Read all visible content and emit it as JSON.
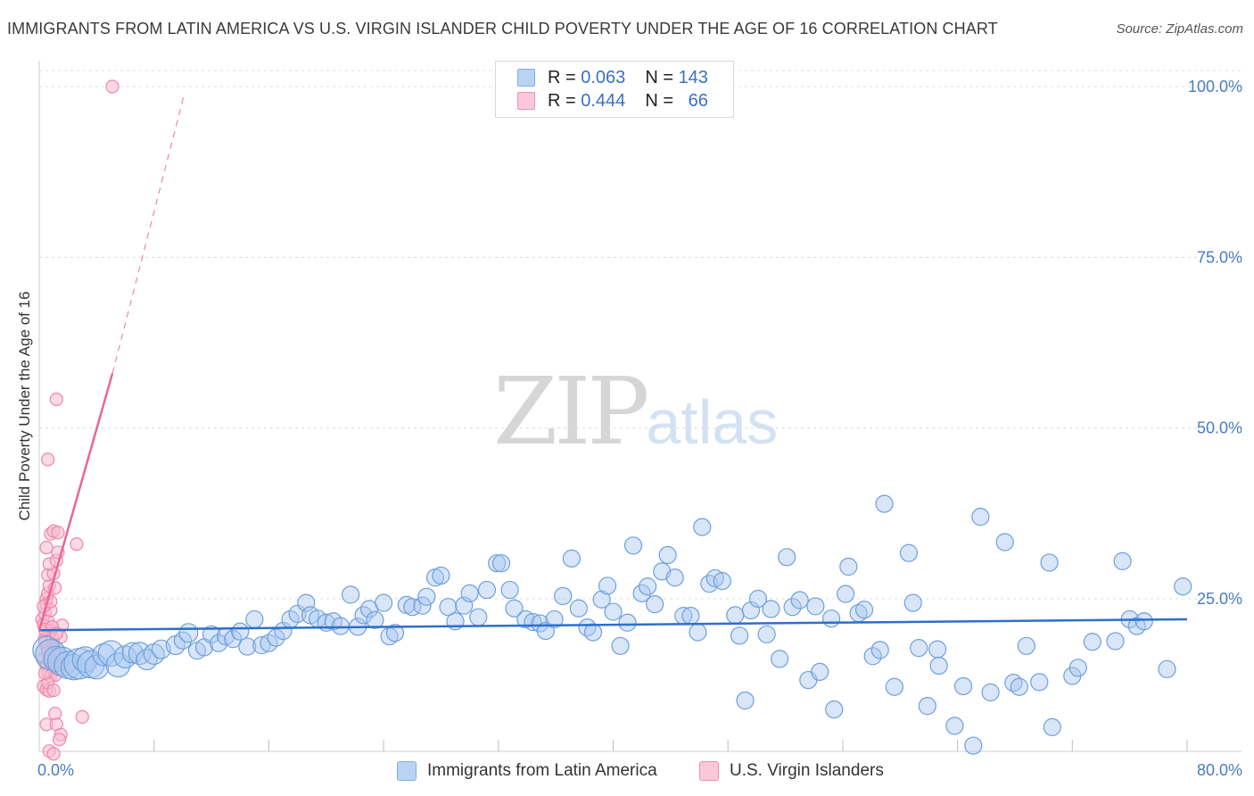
{
  "header": {
    "title": "IMMIGRANTS FROM LATIN AMERICA VS U.S. VIRGIN ISLANDER CHILD POVERTY UNDER THE AGE OF 16 CORRELATION CHART",
    "source": "Source: ZipAtlas.com"
  },
  "watermark": {
    "zip": "ZIP",
    "atlas": "atlas"
  },
  "legend": {
    "rows": [
      {
        "r_label": "R =",
        "r_value": "0.063",
        "n_label": "N =",
        "n_value": "143",
        "color": "#7eaee8"
      },
      {
        "r_label": "R =",
        "r_value": "0.444",
        "n_label": "N =",
        "n_value": "66",
        "color": "#f08fb0"
      }
    ]
  },
  "bottom_legend": {
    "series1": "Immigrants from Latin America",
    "series2": "U.S. Virgin Islanders"
  },
  "colors": {
    "blue_fill": "#a9c8ef",
    "blue_stroke": "#6f9fdc",
    "blue_line": "#2e6fcc",
    "pink_fill": "#f7bccf",
    "pink_stroke": "#ee86a8",
    "pink_line": "#e8669a",
    "axis_text": "#4a7cc4",
    "grid": "#dcdcdc"
  },
  "chart_data": {
    "type": "scatter",
    "title": "IMMIGRANTS FROM LATIN AMERICA VS U.S. VIRGIN ISLANDER CHILD POVERTY UNDER THE AGE OF 16 CORRELATION CHART",
    "xlabel": "",
    "ylabel": "Child Poverty Under the Age of 16",
    "xlim": [
      0,
      80
    ],
    "ylim": [
      0,
      105
    ],
    "x_tick_labels": [
      {
        "value": 0,
        "label": "0.0%"
      },
      {
        "value": 80,
        "label": "80.0%"
      }
    ],
    "y_tick_labels": [
      {
        "value": 25,
        "label": "25.0%"
      },
      {
        "value": 50,
        "label": "50.0%"
      },
      {
        "value": 75,
        "label": "75.0%"
      },
      {
        "value": 100,
        "label": "100.0%"
      }
    ],
    "x_minor_ticks": [
      8,
      16,
      24,
      32,
      40,
      48,
      56,
      64,
      72,
      80
    ],
    "series": [
      {
        "name": "Immigrants from Latin America",
        "R": 0.063,
        "N": 143,
        "trend": {
          "x": [
            0,
            80
          ],
          "y": [
            20.4,
            22.0
          ],
          "style": "solid"
        },
        "points": [
          [
            0.5,
            17.5,
            1.6
          ],
          [
            0.8,
            16.8,
            1.8
          ],
          [
            1.2,
            16.2,
            1.5
          ],
          [
            1.6,
            15.8,
            1.7
          ],
          [
            2.0,
            15.3,
            1.6
          ],
          [
            2.4,
            15.0,
            1.5
          ],
          [
            2.8,
            15.5,
            1.8
          ],
          [
            3.2,
            16.1,
            1.5
          ],
          [
            3.6,
            15.4,
            1.6
          ],
          [
            4.0,
            15.0,
            1.4
          ],
          [
            4.5,
            16.8,
            1.3
          ],
          [
            5.0,
            17.0,
            1.5
          ],
          [
            5.5,
            15.3,
            1.4
          ],
          [
            6.0,
            16.5,
            1.3
          ],
          [
            6.5,
            17.1,
            1.2
          ],
          [
            7.0,
            17.0,
            1.3
          ],
          [
            7.5,
            16.1,
            1.2
          ],
          [
            8.0,
            16.9,
            1.2
          ],
          [
            8.5,
            17.6,
            1.1
          ],
          [
            9.5,
            18.2,
            1.1
          ],
          [
            10.0,
            18.9,
            1.0
          ],
          [
            10.4,
            20.0,
            1.1
          ],
          [
            11.0,
            17.4,
            1.0
          ],
          [
            11.5,
            17.9,
            1.0
          ],
          [
            12.0,
            19.8,
            1.0
          ],
          [
            12.5,
            18.5,
            1.0
          ],
          [
            13.0,
            19.5,
            1.0
          ],
          [
            13.5,
            19.1,
            1.0
          ],
          [
            14.0,
            20.2,
            1.0
          ],
          [
            14.5,
            18.0,
            1.0
          ],
          [
            15.0,
            22.0,
            1.0
          ],
          [
            15.5,
            18.2,
            1.0
          ],
          [
            16.0,
            18.5,
            1.0
          ],
          [
            16.5,
            19.3,
            1.0
          ],
          [
            17.0,
            20.3,
            1.0
          ],
          [
            17.5,
            22.0,
            1.0
          ],
          [
            18.0,
            22.8,
            1.0
          ],
          [
            18.6,
            24.4,
            1.0
          ],
          [
            18.9,
            22.6,
            1.0
          ],
          [
            19.4,
            22.1,
            1.0
          ],
          [
            20.0,
            21.5,
            1.0
          ],
          [
            20.5,
            21.7,
            1.0
          ],
          [
            21.0,
            21.0,
            1.0
          ],
          [
            21.7,
            25.6,
            1.0
          ],
          [
            22.2,
            20.9,
            1.0
          ],
          [
            22.6,
            22.6,
            1.0
          ],
          [
            23.0,
            23.5,
            1.0
          ],
          [
            23.4,
            21.9,
            1.0
          ],
          [
            24.0,
            24.4,
            1.0
          ],
          [
            24.4,
            19.5,
            1.0
          ],
          [
            24.8,
            20.0,
            1.0
          ],
          [
            25.6,
            24.1,
            1.0
          ],
          [
            26.0,
            23.8,
            1.0
          ],
          [
            26.7,
            24.0,
            1.0
          ],
          [
            27.0,
            25.3,
            1.0
          ],
          [
            27.6,
            28.1,
            1.0
          ],
          [
            28.0,
            28.4,
            1.0
          ],
          [
            28.5,
            23.8,
            1.0
          ],
          [
            29.0,
            21.7,
            1.0
          ],
          [
            29.6,
            24.0,
            1.0
          ],
          [
            30.0,
            25.8,
            1.0
          ],
          [
            30.6,
            22.3,
            1.0
          ],
          [
            31.2,
            26.3,
            1.0
          ],
          [
            31.9,
            30.2,
            1.0
          ],
          [
            32.2,
            30.2,
            1.0
          ],
          [
            32.8,
            26.3,
            1.0
          ],
          [
            33.1,
            23.6,
            1.0
          ],
          [
            33.9,
            22.0,
            1.0
          ],
          [
            34.4,
            21.6,
            1.0
          ],
          [
            34.9,
            21.4,
            1.0
          ],
          [
            35.3,
            20.3,
            1.0
          ],
          [
            35.9,
            22.0,
            1.0
          ],
          [
            36.5,
            25.4,
            1.0
          ],
          [
            37.1,
            30.9,
            1.0
          ],
          [
            37.6,
            23.6,
            1.0
          ],
          [
            38.2,
            20.8,
            1.0
          ],
          [
            38.6,
            20.1,
            1.0
          ],
          [
            39.2,
            24.9,
            1.0
          ],
          [
            39.6,
            26.9,
            1.0
          ],
          [
            40.0,
            23.1,
            1.0
          ],
          [
            40.5,
            18.1,
            1.0
          ],
          [
            41.0,
            21.5,
            1.0
          ],
          [
            41.4,
            32.8,
            1.0
          ],
          [
            42.0,
            25.8,
            1.0
          ],
          [
            42.4,
            26.8,
            1.0
          ],
          [
            42.9,
            24.2,
            1.0
          ],
          [
            43.4,
            29.0,
            1.0
          ],
          [
            43.8,
            31.4,
            1.0
          ],
          [
            44.3,
            28.1,
            1.0
          ],
          [
            44.9,
            22.5,
            1.0
          ],
          [
            45.4,
            22.5,
            1.0
          ],
          [
            45.9,
            20.1,
            1.0
          ],
          [
            46.2,
            35.5,
            1.0
          ],
          [
            46.7,
            27.2,
            1.0
          ],
          [
            47.1,
            28.0,
            1.0
          ],
          [
            47.6,
            27.6,
            1.0
          ],
          [
            48.5,
            22.6,
            1.0
          ],
          [
            48.8,
            19.6,
            1.0
          ],
          [
            49.2,
            10.1,
            1.0
          ],
          [
            49.6,
            23.3,
            1.0
          ],
          [
            50.1,
            25.0,
            1.0
          ],
          [
            50.7,
            19.8,
            1.0
          ],
          [
            51.0,
            23.5,
            1.0
          ],
          [
            51.6,
            16.2,
            1.0
          ],
          [
            52.1,
            31.1,
            1.0
          ],
          [
            52.5,
            23.8,
            1.0
          ],
          [
            53.0,
            24.8,
            1.0
          ],
          [
            53.6,
            13.1,
            1.0
          ],
          [
            54.1,
            23.9,
            1.0
          ],
          [
            54.4,
            14.3,
            1.0
          ],
          [
            55.2,
            22.1,
            1.0
          ],
          [
            55.4,
            8.8,
            1.0
          ],
          [
            56.2,
            25.7,
            1.0
          ],
          [
            56.4,
            29.7,
            1.0
          ],
          [
            57.1,
            22.9,
            1.0
          ],
          [
            57.5,
            23.4,
            1.0
          ],
          [
            58.1,
            16.6,
            1.0
          ],
          [
            58.6,
            17.5,
            1.0
          ],
          [
            58.9,
            38.9,
            1.0
          ],
          [
            59.6,
            12.1,
            1.0
          ],
          [
            60.6,
            31.7,
            1.0
          ],
          [
            60.9,
            24.4,
            1.0
          ],
          [
            61.3,
            17.8,
            1.0
          ],
          [
            61.9,
            9.3,
            1.0
          ],
          [
            62.6,
            17.6,
            1.0
          ],
          [
            62.7,
            15.2,
            1.0
          ],
          [
            63.8,
            6.4,
            1.0
          ],
          [
            64.4,
            12.2,
            1.0
          ],
          [
            65.1,
            3.5,
            1.0
          ],
          [
            65.6,
            37.0,
            1.0
          ],
          [
            66.3,
            11.3,
            1.0
          ],
          [
            67.3,
            33.3,
            1.0
          ],
          [
            67.9,
            12.7,
            1.0
          ],
          [
            68.3,
            12.1,
            1.0
          ],
          [
            68.8,
            18.1,
            1.0
          ],
          [
            69.7,
            12.8,
            1.0
          ],
          [
            70.4,
            30.3,
            1.0
          ],
          [
            70.6,
            6.2,
            1.0
          ],
          [
            72.0,
            13.7,
            1.0
          ],
          [
            72.4,
            14.9,
            1.0
          ],
          [
            73.4,
            18.7,
            1.0
          ],
          [
            75.0,
            18.8,
            1.0
          ],
          [
            75.5,
            30.5,
            1.0
          ],
          [
            76.0,
            22.0,
            1.0
          ],
          [
            76.5,
            21.0,
            1.0
          ],
          [
            77.0,
            21.7,
            1.0
          ],
          [
            78.6,
            14.7,
            1.0
          ],
          [
            79.7,
            26.8,
            1.0
          ]
        ]
      },
      {
        "name": "U.S. Virgin Islanders",
        "R": 0.444,
        "N": 66,
        "trend": {
          "x": [
            0,
            5.1
          ],
          "y": [
            20.4,
            58.0
          ],
          "style": "solid",
          "extended": {
            "x": [
              5.1,
              10.1
            ],
            "y": [
              58.0,
              98.8
            ],
            "style": "dashed"
          }
        },
        "points": [
          [
            0.2,
            22.0
          ],
          [
            0.3,
            21.2
          ],
          [
            0.4,
            22.8
          ],
          [
            0.5,
            24.2
          ],
          [
            0.6,
            21.7
          ],
          [
            0.7,
            20.4
          ],
          [
            0.8,
            23.3
          ],
          [
            0.4,
            19.2
          ],
          [
            0.5,
            18.0
          ],
          [
            0.6,
            17.6
          ],
          [
            0.7,
            16.6
          ],
          [
            0.3,
            16.2
          ],
          [
            0.5,
            15.3
          ],
          [
            0.9,
            14.9
          ],
          [
            1.0,
            14.5
          ],
          [
            0.6,
            14.2
          ],
          [
            0.8,
            13.7
          ],
          [
            1.1,
            13.8
          ],
          [
            1.2,
            15.2
          ],
          [
            0.9,
            17.7
          ],
          [
            1.0,
            18.4
          ],
          [
            1.1,
            17.0
          ],
          [
            1.3,
            16.9
          ],
          [
            0.4,
            18.8
          ],
          [
            0.9,
            19.4
          ],
          [
            1.5,
            19.4
          ],
          [
            1.6,
            21.1
          ],
          [
            0.5,
            25.0
          ],
          [
            0.6,
            25.8
          ],
          [
            0.7,
            26.9
          ],
          [
            1.1,
            26.6
          ],
          [
            0.6,
            28.5
          ],
          [
            1.0,
            28.7
          ],
          [
            0.7,
            30.1
          ],
          [
            1.2,
            30.6
          ],
          [
            0.5,
            32.5
          ],
          [
            1.3,
            31.8
          ],
          [
            0.8,
            34.5
          ],
          [
            1.0,
            34.9
          ],
          [
            1.3,
            34.7
          ],
          [
            2.6,
            33.0
          ],
          [
            0.6,
            45.4
          ],
          [
            1.2,
            54.2
          ],
          [
            0.3,
            12.2
          ],
          [
            0.5,
            11.7
          ],
          [
            0.7,
            11.5
          ],
          [
            0.6,
            12.7
          ],
          [
            1.0,
            11.6
          ],
          [
            1.1,
            8.2
          ],
          [
            0.5,
            6.6
          ],
          [
            1.2,
            6.6
          ],
          [
            1.5,
            5.1
          ],
          [
            1.4,
            4.4
          ],
          [
            3.0,
            7.7
          ],
          [
            0.7,
            2.7
          ],
          [
            1.0,
            2.3
          ],
          [
            0.6,
            17.1
          ],
          [
            0.8,
            15.9
          ],
          [
            1.4,
            14.8
          ],
          [
            0.4,
            20.5
          ],
          [
            0.9,
            20.9
          ],
          [
            0.3,
            23.9
          ],
          [
            0.8,
            24.6
          ],
          [
            1.2,
            19.9
          ],
          [
            0.4,
            14.1
          ],
          [
            5.1,
            100.0
          ]
        ]
      }
    ]
  }
}
